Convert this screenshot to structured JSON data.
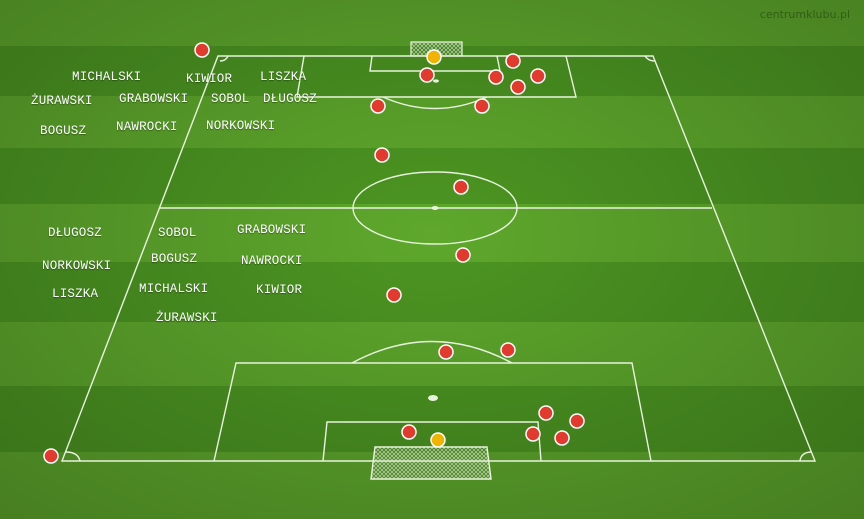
{
  "brand": "centrumklubu.pl",
  "colors": {
    "grass_light": "#5fa62e",
    "grass_dark": "#3f8a1e",
    "lines": "#e8f3dc",
    "player": "#e23a2e",
    "goalkeeper_marker": "#f0b400"
  },
  "top_team_names": {
    "n1": "MICHALSKI",
    "n2": "KIWIOR",
    "n3": "LISZKA",
    "n4": "ŻURAWSKI",
    "n5": "GRABOWSKI",
    "n6": "SOBOL",
    "n7": "DŁUGOSZ",
    "n8": "BOGUSZ",
    "n9": "NAWROCKI",
    "n10": "NORKOWSKI"
  },
  "bottom_team_names": {
    "n1": "DŁUGOSZ",
    "n2": "SOBOL",
    "n3": "GRABOWSKI",
    "n4": "NORKOWSKI",
    "n5": "BOGUSZ",
    "n6": "NAWROCKI",
    "n7": "LISZKA",
    "n8": "MICHALSKI",
    "n9": "KIWIOR",
    "n10": "ŻURAWSKI"
  }
}
